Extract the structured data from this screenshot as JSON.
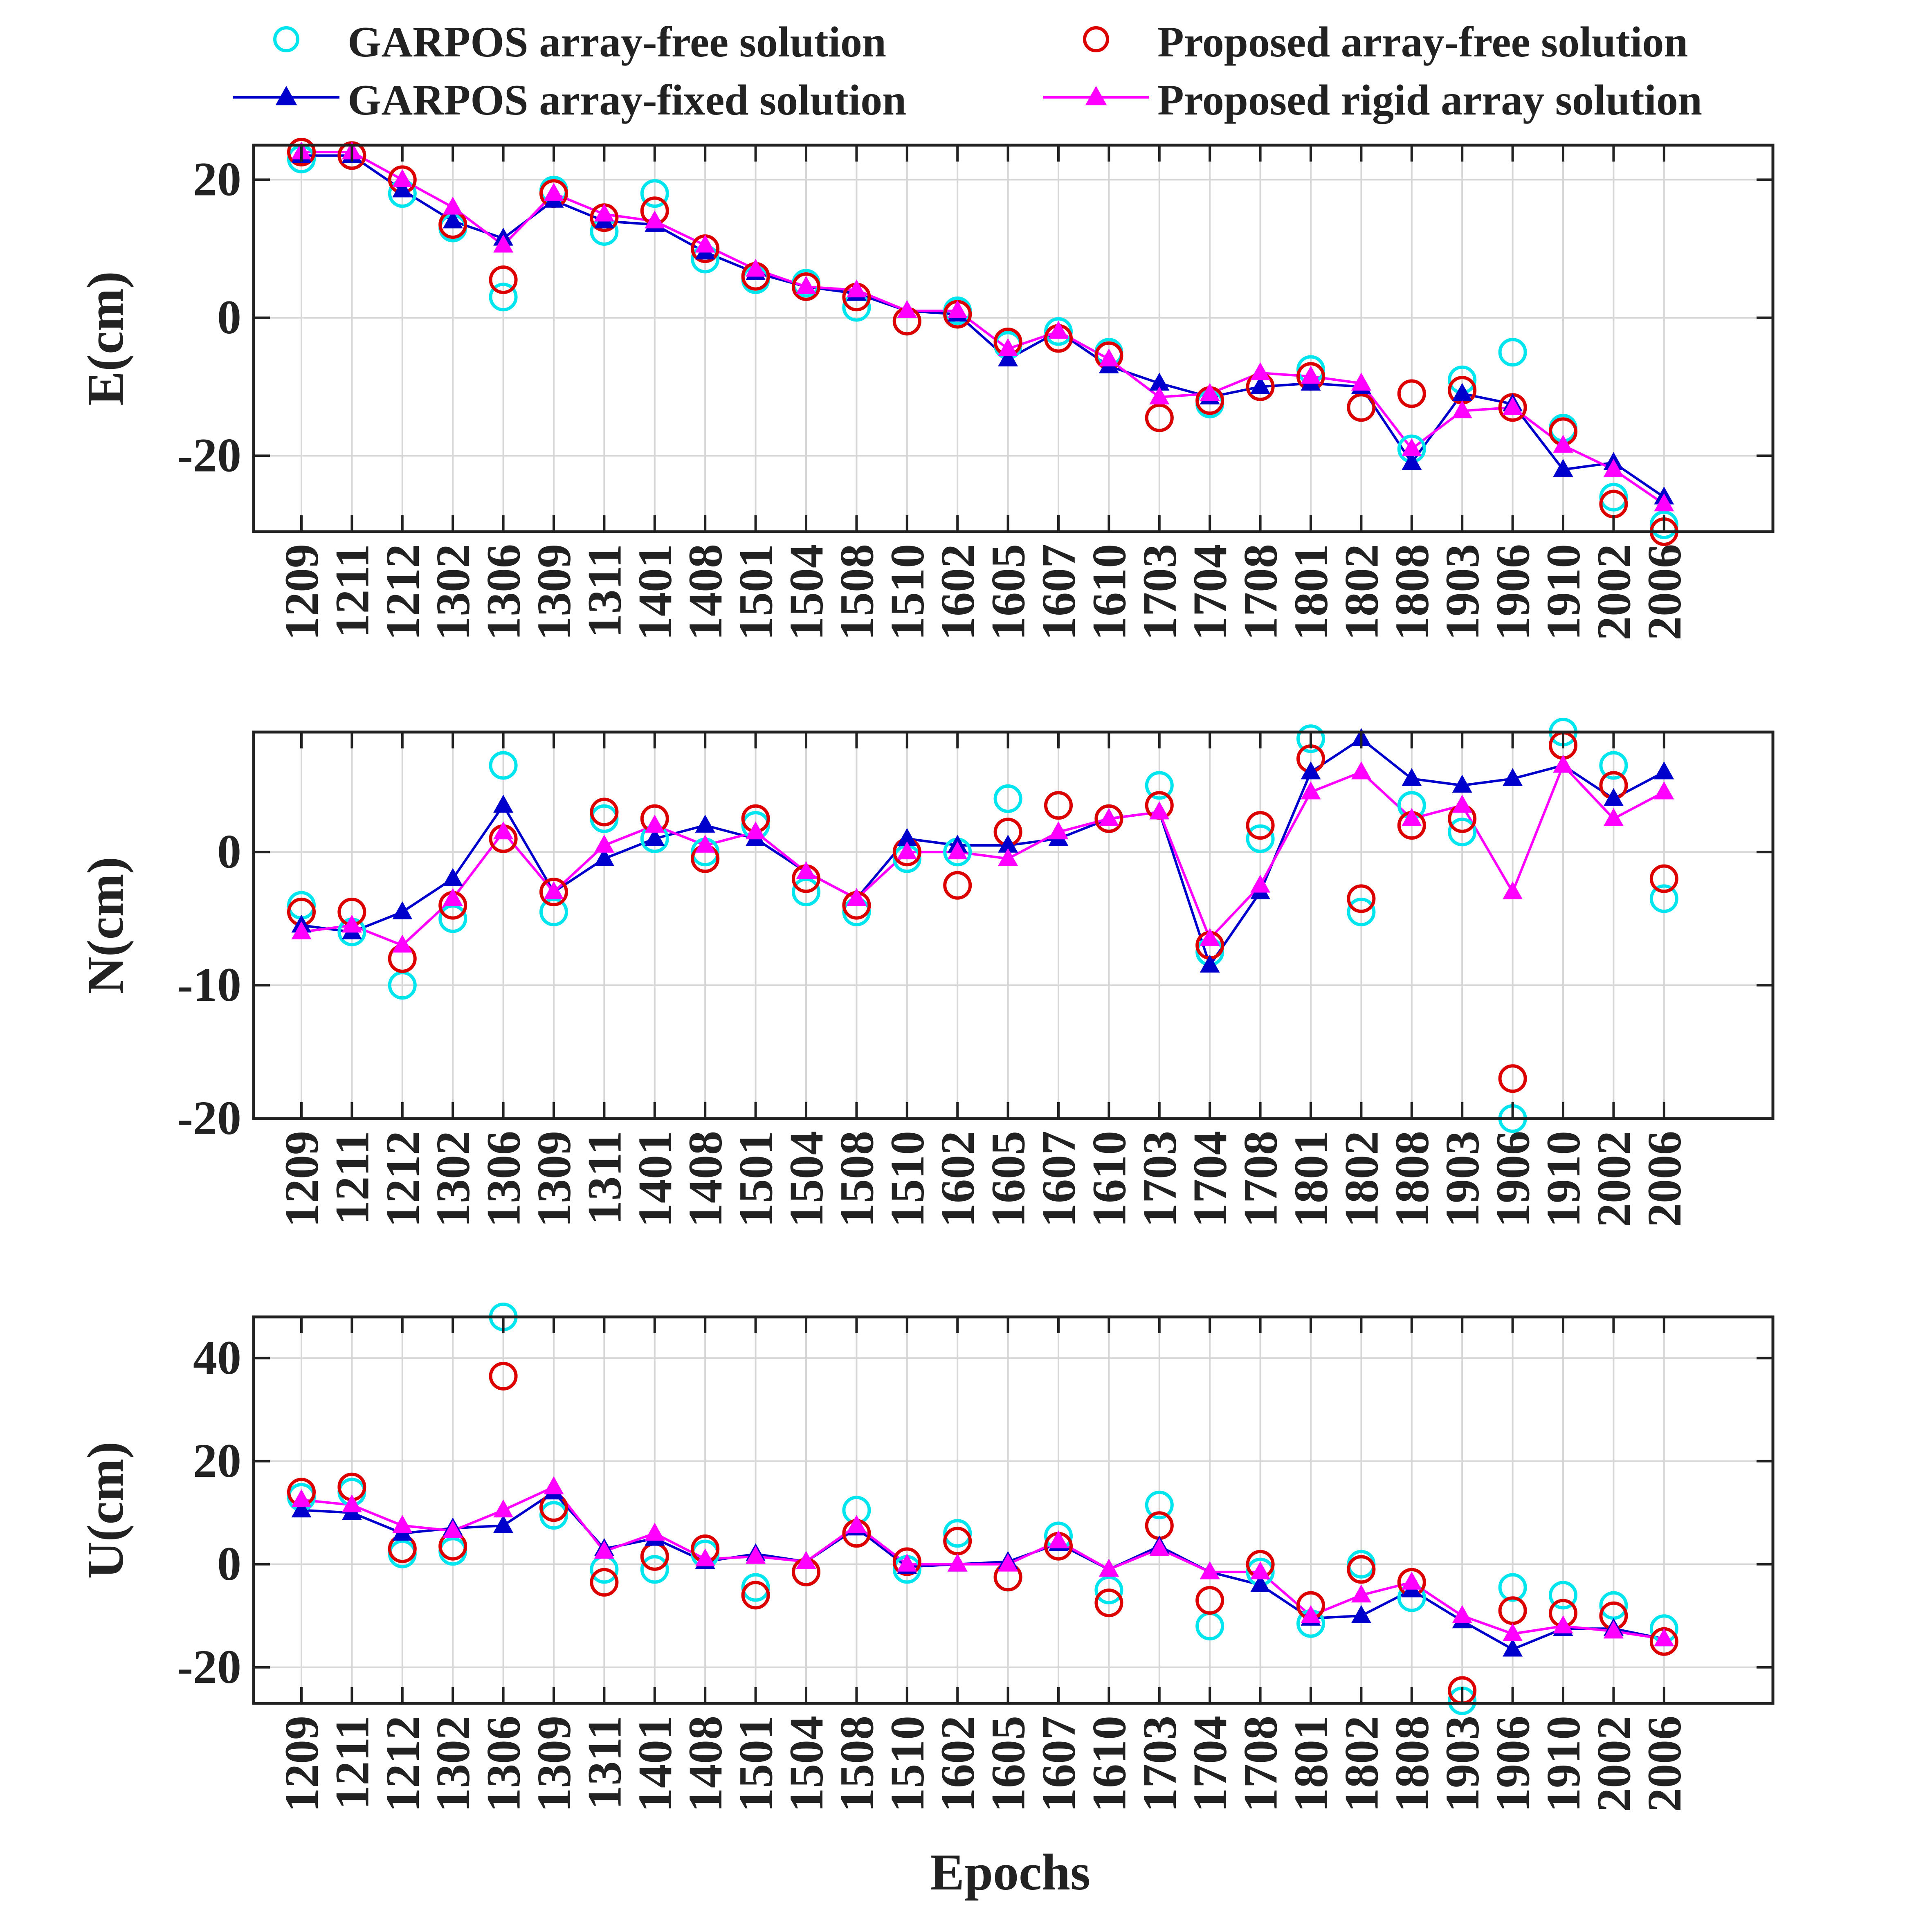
{
  "chart_data": {
    "type": "line",
    "legend": {
      "placement": "top",
      "entries": [
        {
          "key": "garpos_free",
          "label": "GARPOS array-free solution",
          "marker": "circle",
          "color": "#00e5ee",
          "line": false
        },
        {
          "key": "proposed_free",
          "label": "Proposed array-free solution",
          "marker": "circle",
          "color": "#dd0000",
          "line": false
        },
        {
          "key": "garpos_fixed",
          "label": "GARPOS array-fixed solution",
          "marker": "triangle",
          "color": "#0000cc",
          "line": true
        },
        {
          "key": "proposed_rigid",
          "label": "Proposed rigid array solution",
          "marker": "triangle",
          "color": "#ff00ff",
          "line": true
        }
      ]
    },
    "x": [
      "1209",
      "1211",
      "1212",
      "1302",
      "1306",
      "1309",
      "1311",
      "1401",
      "1408",
      "1501",
      "1504",
      "1508",
      "1510",
      "1602",
      "1605",
      "1607",
      "1610",
      "1703",
      "1704",
      "1708",
      "1801",
      "1802",
      "1808",
      "1903",
      "1906",
      "1910",
      "2002",
      "2006"
    ],
    "xlabel": "Epochs",
    "grid": true,
    "panels": [
      {
        "ylabel": "E(cm)",
        "ylim": [
          -31,
          25
        ],
        "yticks": [
          -20,
          0,
          20
        ],
        "series": {
          "garpos_free": [
            23,
            23.5,
            18,
            13,
            3,
            18.5,
            12.5,
            18,
            8.5,
            5.5,
            5,
            1.5,
            -0.5,
            1,
            -4,
            -2,
            -5,
            -14.5,
            -12.5,
            -10,
            -7.5,
            -13,
            -19,
            -9,
            -5,
            -16,
            -26,
            -30
          ],
          "proposed_free": [
            24,
            23.5,
            20,
            13.5,
            5.5,
            18,
            14.5,
            15.5,
            10,
            6,
            4.5,
            3,
            -0.5,
            0.5,
            -3.5,
            -3,
            -5.5,
            -14.5,
            -12,
            -10,
            -8.5,
            -13,
            -11,
            -10.5,
            -13,
            -16.5,
            -27,
            -31
          ],
          "garpos_fixed": [
            23.5,
            23.5,
            18.5,
            14,
            11.5,
            17,
            14,
            13.5,
            9.5,
            6.5,
            4.5,
            3.5,
            1,
            0.5,
            -6,
            -2,
            -7,
            -9.5,
            -11.5,
            -10,
            -9.5,
            -10,
            -21,
            -11,
            -12.5,
            -22,
            -21,
            -26
          ],
          "proposed_rigid": [
            24,
            24,
            20,
            16,
            10.5,
            18,
            15,
            14,
            10.5,
            7,
            4.5,
            4,
            1,
            1,
            -4.5,
            -2,
            -6,
            -11.5,
            -11,
            -8,
            -8.5,
            -9.5,
            -19,
            -13.5,
            -13,
            -18.5,
            -22,
            -27
          ]
        }
      },
      {
        "ylabel": "N(cm)",
        "ylim": [
          -20,
          9
        ],
        "yticks": [
          -20,
          -10,
          0
        ],
        "series": {
          "garpos_free": [
            -4,
            -6,
            -10,
            -5,
            6.5,
            -4.5,
            2.5,
            1,
            0,
            2,
            -3,
            -4.5,
            -0.5,
            0,
            4,
            3.5,
            2.5,
            5,
            -7.5,
            1,
            8.5,
            -4.5,
            3.5,
            1.5,
            -20,
            9,
            6.5,
            -3.5
          ],
          "proposed_free": [
            -4.5,
            -4.5,
            -8,
            -4,
            1,
            -3,
            3,
            2.5,
            -0.5,
            2.5,
            -2,
            -4,
            0,
            -2.5,
            1.5,
            3.5,
            2.5,
            3.5,
            -7,
            2,
            7,
            -3.5,
            2,
            2.5,
            -17,
            8,
            5,
            -2
          ],
          "garpos_fixed": [
            -5.5,
            -6,
            -4.5,
            -2,
            3.5,
            -3,
            -0.5,
            1,
            2,
            1,
            -1.5,
            -3.5,
            1,
            0.5,
            0.5,
            1,
            2.5,
            3,
            -8.5,
            -3,
            6,
            8.5,
            5.5,
            5,
            5.5,
            6.5,
            4,
            6
          ],
          "proposed_rigid": [
            -6,
            -5.5,
            -7,
            -3.5,
            1.5,
            -3,
            0.5,
            2,
            0.5,
            1.5,
            -1.5,
            -3.5,
            0,
            0,
            -0.5,
            1.5,
            2.5,
            3,
            -6.5,
            -2.5,
            4.5,
            6,
            2.5,
            3.5,
            -3,
            6.5,
            2.5,
            4.5
          ]
        }
      },
      {
        "ylabel": "U(cm)",
        "ylim": [
          -27,
          48
        ],
        "yticks": [
          -20,
          0,
          20,
          40
        ],
        "series": {
          "garpos_free": [
            13,
            14,
            2,
            2.5,
            48,
            9.5,
            -1,
            -1,
            2,
            -4.5,
            -1.5,
            10.5,
            -1,
            6,
            -2.5,
            5.5,
            -5,
            11.5,
            -12,
            -1.5,
            -11.5,
            0,
            -6.5,
            -26.5,
            -4.5,
            -6,
            -8,
            -12.5
          ],
          "proposed_free": [
            14,
            15,
            3,
            3.5,
            36.5,
            11,
            -3.5,
            1.5,
            3,
            -6,
            -1.5,
            6,
            0.5,
            4.5,
            -2.5,
            3.5,
            -7.5,
            7.5,
            -7,
            0,
            -8,
            -1,
            -3.5,
            -24.5,
            -9,
            -9.5,
            -10,
            -15
          ],
          "garpos_fixed": [
            10.5,
            10,
            6,
            7,
            7.5,
            14,
            3,
            5,
            0.5,
            2,
            0.5,
            7,
            -0.5,
            0,
            0.5,
            4,
            -1,
            3.5,
            -1.5,
            -4,
            -10.5,
            -10,
            -5,
            -11,
            -16.5,
            -12.5,
            -12.5,
            -14.5
          ],
          "proposed_rigid": [
            12.5,
            11.5,
            7.5,
            6.5,
            10.5,
            15,
            2.5,
            6,
            1,
            1.5,
            0.5,
            7.5,
            0,
            0,
            0,
            4.5,
            -1,
            3,
            -1.5,
            -1.5,
            -10,
            -6,
            -3.5,
            -10,
            -13.5,
            -12,
            -13,
            -14.5
          ]
        }
      }
    ]
  }
}
